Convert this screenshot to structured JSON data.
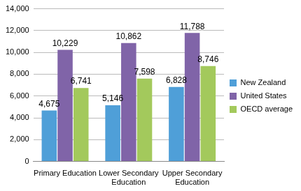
{
  "chart_data": {
    "type": "bar",
    "categories": [
      "Primary Education",
      "Lower Secondary Education",
      "Upper Secondary Education"
    ],
    "series": [
      {
        "name": "New Zealand",
        "color": "#4f9fd8",
        "values": [
          4675,
          5146,
          6828
        ],
        "value_labels": [
          "4,675",
          "5,146",
          "6,828"
        ]
      },
      {
        "name": "United States",
        "color": "#8064a8",
        "values": [
          10229,
          10862,
          11788
        ],
        "value_labels": [
          "10,229",
          "10,862",
          "11,788"
        ]
      },
      {
        "name": "OECD average",
        "color": "#a3c95c",
        "values": [
          6741,
          7598,
          8746
        ],
        "value_labels": [
          "6,741",
          "7,598",
          "8,746"
        ]
      }
    ],
    "ylim": [
      0,
      14000
    ],
    "yticks": [
      0,
      {
        "value": 2000,
        "label": "2,000"
      },
      {
        "value": 4000,
        "label": "4,000"
      },
      {
        "value": 6000,
        "label": "6,000"
      },
      {
        "value": 8000,
        "label": "8,000"
      },
      {
        "value": 10000,
        "label": "10,000"
      },
      {
        "value": 12000,
        "label": "12,000"
      },
      {
        "value": 14000,
        "label": "14,000"
      }
    ],
    "grid": true,
    "legend": "right",
    "data_labels": true
  }
}
